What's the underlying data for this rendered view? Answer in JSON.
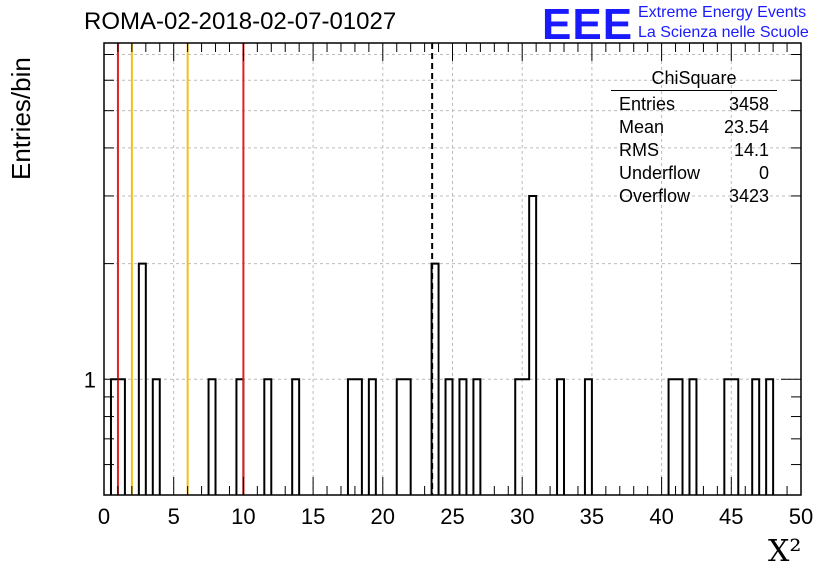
{
  "header": {
    "title": "ROMA-02-2018-02-07-01027",
    "logo_text": "EEE",
    "logo_line1": "Extreme Energy Events",
    "logo_line2": "La Scienza nelle Scuole"
  },
  "stats_box": {
    "title": "ChiSquare",
    "rows": [
      {
        "label": "Entries",
        "value": "3458"
      },
      {
        "label": "Mean",
        "value": "23.54"
      },
      {
        "label": "RMS",
        "value": "14.1"
      },
      {
        "label": "Underflow",
        "value": "0"
      },
      {
        "label": "Overflow",
        "value": "3423"
      }
    ]
  },
  "colors": {
    "red_line": "#e02020",
    "yellow_line": "#f2c018",
    "histogram": "#000000",
    "logo": "#1a1aff"
  },
  "chart_data": {
    "type": "bar",
    "histogram": true,
    "xlabel": "X²",
    "ylabel": "Entries/bin",
    "xlim": [
      0,
      50
    ],
    "ylim": [
      0.5,
      7.5
    ],
    "log_y": true,
    "grid": true,
    "bin_width": 0.5,
    "x_ticks": [
      "0",
      "5",
      "10",
      "15",
      "20",
      "25",
      "30",
      "35",
      "40",
      "45",
      "50"
    ],
    "y_tick_labels": [
      "1"
    ],
    "bins": [
      {
        "x": 0.5,
        "y": 1
      },
      {
        "x": 1.0,
        "y": 1
      },
      {
        "x": 2.5,
        "y": 2
      },
      {
        "x": 3.5,
        "y": 1
      },
      {
        "x": 7.5,
        "y": 1
      },
      {
        "x": 9.5,
        "y": 1
      },
      {
        "x": 11.5,
        "y": 1
      },
      {
        "x": 13.5,
        "y": 1
      },
      {
        "x": 17.5,
        "y": 1
      },
      {
        "x": 18.0,
        "y": 1
      },
      {
        "x": 19.0,
        "y": 1
      },
      {
        "x": 21.0,
        "y": 1
      },
      {
        "x": 21.5,
        "y": 1
      },
      {
        "x": 23.5,
        "y": 2
      },
      {
        "x": 24.5,
        "y": 1
      },
      {
        "x": 25.5,
        "y": 1
      },
      {
        "x": 26.5,
        "y": 1
      },
      {
        "x": 29.5,
        "y": 1
      },
      {
        "x": 30.0,
        "y": 1
      },
      {
        "x": 30.5,
        "y": 3
      },
      {
        "x": 32.5,
        "y": 1
      },
      {
        "x": 34.5,
        "y": 1
      },
      {
        "x": 40.5,
        "y": 1
      },
      {
        "x": 41.0,
        "y": 1
      },
      {
        "x": 42.0,
        "y": 1
      },
      {
        "x": 44.5,
        "y": 1
      },
      {
        "x": 45.0,
        "y": 1
      },
      {
        "x": 46.5,
        "y": 1
      },
      {
        "x": 47.5,
        "y": 1
      }
    ],
    "vertical_lines": [
      {
        "x": 1,
        "color": "red",
        "style": "solid"
      },
      {
        "x": 2,
        "color": "yellow",
        "style": "solid"
      },
      {
        "x": 6,
        "color": "yellow",
        "style": "solid"
      },
      {
        "x": 10,
        "color": "red",
        "style": "solid"
      },
      {
        "x": 23.54,
        "color": "black",
        "style": "dashed"
      }
    ]
  }
}
